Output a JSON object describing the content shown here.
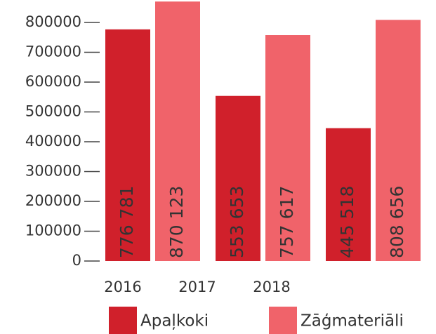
{
  "chart_data": {
    "type": "bar",
    "categories": [
      "2016",
      "2017",
      "2018"
    ],
    "series": [
      {
        "name": "Apaļkoki",
        "color": "#d0202b",
        "values": [
          776781,
          553653,
          445518
        ],
        "value_labels": [
          "776 781",
          "553 653",
          "445 518"
        ]
      },
      {
        "name": "Zāģmateriāli",
        "color": "#f0636a",
        "values": [
          870123,
          757617,
          808656
        ],
        "value_labels": [
          "870 123",
          "757 617",
          "808 656"
        ]
      }
    ],
    "ylim": [
      0,
      800000
    ],
    "yticks": [
      0,
      100000,
      200000,
      300000,
      400000,
      500000,
      600000,
      700000,
      800000
    ],
    "legend": "bottom"
  }
}
